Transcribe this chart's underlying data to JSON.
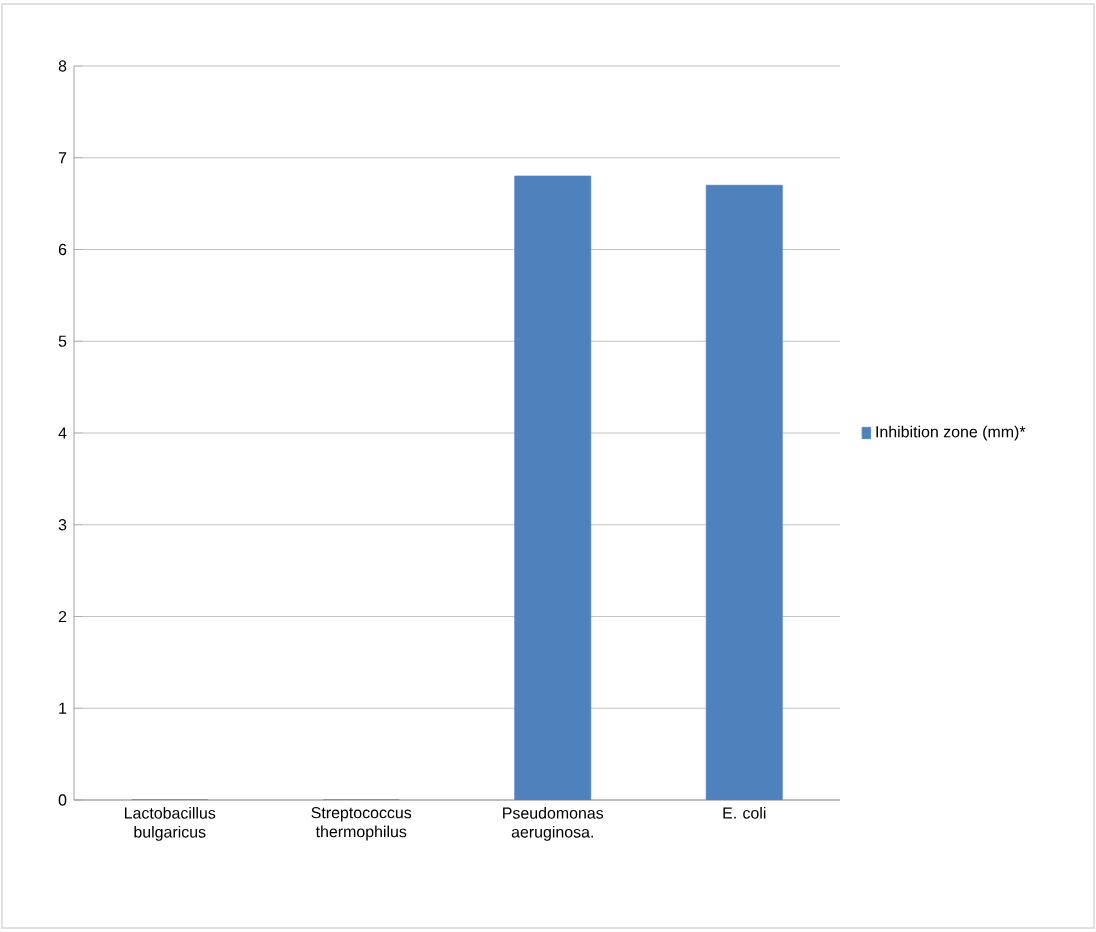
{
  "chart_data": {
    "type": "bar",
    "categories": [
      "Lactobacillus bulgaricus",
      "Streptococcus thermophilus",
      "Pseudomonas aeruginosa.",
      "E. coli"
    ],
    "series": [
      {
        "name": "Inhibition zone (mm)*",
        "color": "#4f81bd",
        "values": [
          0,
          0,
          6.8,
          6.7
        ]
      }
    ],
    "ylim": [
      0,
      8
    ],
    "yticks": [
      0,
      1,
      2,
      3,
      4,
      5,
      6,
      7,
      8
    ],
    "grid": "y",
    "legend": "right"
  }
}
